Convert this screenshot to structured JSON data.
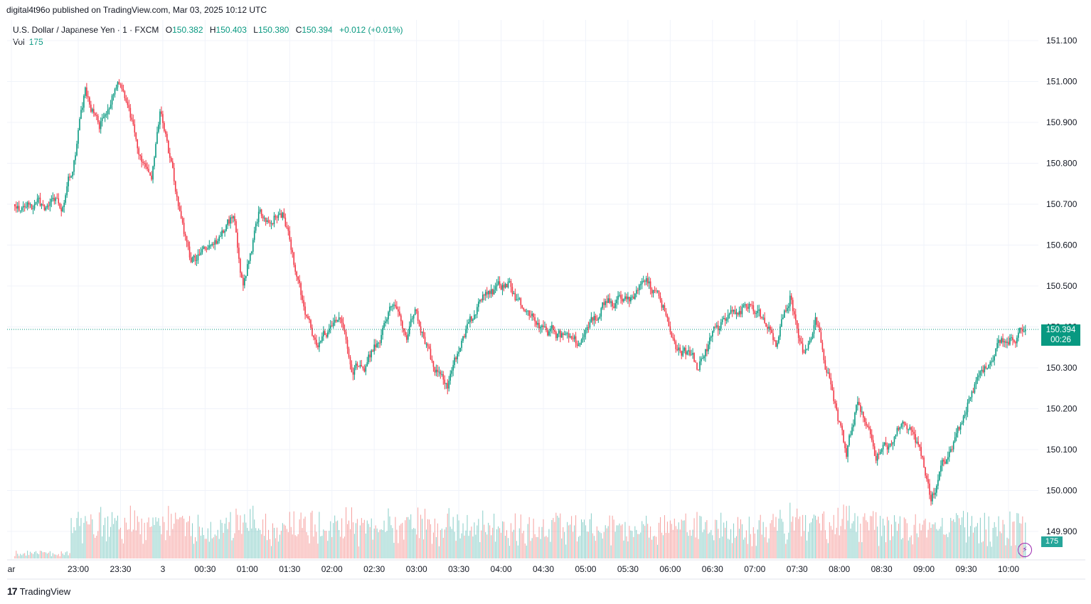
{
  "header": {
    "published": "digital4t96o published on TradingView.com, Mar 03, 2025 10:12 UTC"
  },
  "legend": {
    "symbol": "U.S. Dollar / Japanese Yen · 1 · FXCM",
    "open_label": "O",
    "open": "150.382",
    "high_label": "H",
    "high": "150.403",
    "low_label": "L",
    "low": "150.380",
    "close_label": "C",
    "close": "150.394",
    "change": "+0.012 (+0.01%)",
    "vol_label": "Vol",
    "vol": "175"
  },
  "last_price": {
    "price": "150.394",
    "countdown": "00:26",
    "volume": "175"
  },
  "footer": {
    "brand": "TradingView",
    "logo_text": "17"
  },
  "colors": {
    "up": "#089981",
    "down": "#f23645",
    "vol_up": "#26a69a",
    "vol_down": "#ef5350",
    "grid": "#f0f3fa",
    "last_line": "#089981"
  },
  "chart_data": {
    "type": "candlestick",
    "ylim": [
      149.85,
      151.12
    ],
    "y_ticks": [
      "151.100",
      "151.000",
      "150.900",
      "150.800",
      "150.700",
      "150.600",
      "150.500",
      "150.400",
      "150.300",
      "150.200",
      "150.100",
      "150.000",
      "149.900"
    ],
    "x_ticks": [
      "ar",
      "23:00",
      "23:30",
      "3",
      "00:30",
      "01:00",
      "01:30",
      "02:00",
      "02:30",
      "03:00",
      "03:30",
      "04:00",
      "04:30",
      "05:00",
      "05:30",
      "06:00",
      "06:30",
      "07:00",
      "07:30",
      "08:00",
      "08:30",
      "09:00",
      "09:30",
      "10:00"
    ],
    "last_price": 150.394,
    "anchors": [
      {
        "t": "22:15",
        "p": 150.7
      },
      {
        "t": "22:35",
        "p": 150.69
      },
      {
        "t": "22:48",
        "p": 150.7
      },
      {
        "t": "22:55",
        "p": 150.78
      },
      {
        "t": "23:05",
        "p": 150.97
      },
      {
        "t": "23:15",
        "p": 150.9
      },
      {
        "t": "23:28",
        "p": 151.0
      },
      {
        "t": "23:40",
        "p": 150.86
      },
      {
        "t": "23:52",
        "p": 150.77
      },
      {
        "t": "23:58",
        "p": 150.94
      },
      {
        "t": "00:10",
        "p": 150.72
      },
      {
        "t": "00:20",
        "p": 150.56
      },
      {
        "t": "00:38",
        "p": 150.6
      },
      {
        "t": "00:50",
        "p": 150.67
      },
      {
        "t": "00:57",
        "p": 150.5
      },
      {
        "t": "01:08",
        "p": 150.67
      },
      {
        "t": "01:25",
        "p": 150.68
      },
      {
        "t": "01:40",
        "p": 150.45
      },
      {
        "t": "01:50",
        "p": 150.36
      },
      {
        "t": "02:05",
        "p": 150.42
      },
      {
        "t": "02:15",
        "p": 150.3
      },
      {
        "t": "02:25",
        "p": 150.31
      },
      {
        "t": "02:43",
        "p": 150.45
      },
      {
        "t": "02:53",
        "p": 150.38
      },
      {
        "t": "03:00",
        "p": 150.44
      },
      {
        "t": "03:10",
        "p": 150.32
      },
      {
        "t": "03:22",
        "p": 150.26
      },
      {
        "t": "03:35",
        "p": 150.38
      },
      {
        "t": "03:47",
        "p": 150.47
      },
      {
        "t": "04:05",
        "p": 150.5
      },
      {
        "t": "04:20",
        "p": 150.43
      },
      {
        "t": "04:35",
        "p": 150.39
      },
      {
        "t": "04:55",
        "p": 150.35
      },
      {
        "t": "05:12",
        "p": 150.45
      },
      {
        "t": "05:30",
        "p": 150.47
      },
      {
        "t": "05:43",
        "p": 150.5
      },
      {
        "t": "05:55",
        "p": 150.45
      },
      {
        "t": "06:05",
        "p": 150.35
      },
      {
        "t": "06:20",
        "p": 150.3
      },
      {
        "t": "06:30",
        "p": 150.38
      },
      {
        "t": "06:45",
        "p": 150.43
      },
      {
        "t": "06:57",
        "p": 150.47
      },
      {
        "t": "07:03",
        "p": 150.43
      },
      {
        "t": "07:15",
        "p": 150.36
      },
      {
        "t": "07:25",
        "p": 150.48
      },
      {
        "t": "07:35",
        "p": 150.33
      },
      {
        "t": "07:43",
        "p": 150.41
      },
      {
        "t": "07:58",
        "p": 150.2
      },
      {
        "t": "08:05",
        "p": 150.08
      },
      {
        "t": "08:13",
        "p": 150.22
      },
      {
        "t": "08:25",
        "p": 150.08
      },
      {
        "t": "08:35",
        "p": 150.1
      },
      {
        "t": "08:45",
        "p": 150.18
      },
      {
        "t": "08:57",
        "p": 150.09
      },
      {
        "t": "09:05",
        "p": 149.98
      },
      {
        "t": "09:15",
        "p": 150.07
      },
      {
        "t": "09:25",
        "p": 150.15
      },
      {
        "t": "09:35",
        "p": 150.25
      },
      {
        "t": "09:50",
        "p": 150.35
      },
      {
        "t": "10:05",
        "p": 150.38
      },
      {
        "t": "10:12",
        "p": 150.394
      }
    ]
  }
}
